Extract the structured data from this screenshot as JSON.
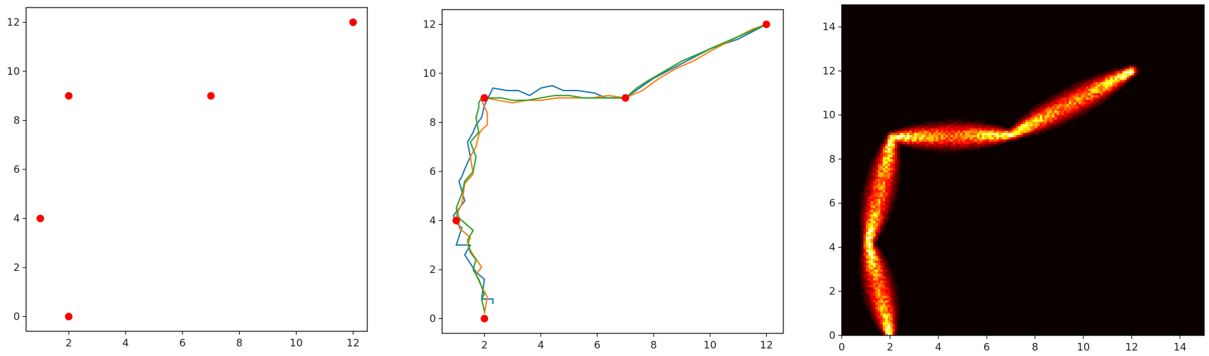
{
  "chart_data": [
    {
      "type": "scatter",
      "title": "",
      "xlabel": "",
      "ylabel": "",
      "xlim": [
        0.5,
        12.5
      ],
      "ylim": [
        -0.6,
        12.6
      ],
      "xticks": [
        2,
        4,
        6,
        8,
        10,
        12
      ],
      "yticks": [
        0,
        2,
        4,
        6,
        8,
        10,
        12
      ],
      "grid": false,
      "points": [
        {
          "x": 2,
          "y": 0
        },
        {
          "x": 1,
          "y": 4
        },
        {
          "x": 2,
          "y": 9
        },
        {
          "x": 7,
          "y": 9
        },
        {
          "x": 12,
          "y": 12
        }
      ],
      "point_color": "#ff0000"
    },
    {
      "type": "line",
      "title": "",
      "xlabel": "",
      "ylabel": "",
      "xlim": [
        0.5,
        12.6
      ],
      "ylim": [
        -0.6,
        12.6
      ],
      "xticks": [
        2,
        4,
        6,
        8,
        10,
        12
      ],
      "yticks": [
        0,
        2,
        4,
        6,
        8,
        10,
        12
      ],
      "grid": false,
      "waypoints": [
        {
          "x": 2,
          "y": 0
        },
        {
          "x": 1,
          "y": 4
        },
        {
          "x": 2,
          "y": 9
        },
        {
          "x": 7,
          "y": 9
        },
        {
          "x": 12,
          "y": 12
        }
      ],
      "waypoint_color": "#ff0000",
      "series": [
        {
          "color": "#1f77b4",
          "x": [
            2.3,
            2.3,
            1.9,
            2.0,
            1.8,
            1.7,
            1.3,
            1.5,
            1.0,
            1.2,
            1.0,
            0.9,
            1.3,
            1.1,
            1.2,
            1.3,
            1.5,
            1.4,
            1.6,
            1.7,
            1.9,
            2.0,
            2.3,
            2.8,
            3.2,
            3.6,
            4.0,
            4.4,
            4.8,
            5.3,
            5.9,
            6.3,
            6.7,
            7.0,
            7.5,
            8.0,
            8.5,
            9.0,
            9.5,
            10.0,
            10.5,
            11.0,
            11.5,
            12.0
          ],
          "y": [
            0.6,
            0.8,
            0.8,
            1.6,
            1.8,
            1.9,
            2.6,
            3.0,
            3.0,
            3.7,
            3.9,
            4.2,
            4.8,
            5.6,
            5.8,
            6.1,
            6.6,
            7.2,
            7.6,
            7.9,
            8.2,
            8.7,
            9.4,
            9.3,
            9.3,
            9.1,
            9.4,
            9.5,
            9.3,
            9.3,
            9.2,
            9.0,
            9.0,
            9.0,
            9.4,
            9.8,
            10.1,
            10.4,
            10.7,
            11.0,
            11.2,
            11.4,
            11.7,
            12.0
          ]
        },
        {
          "color": "#ff7f0e",
          "x": [
            2.0,
            2.1,
            1.9,
            1.7,
            1.9,
            1.6,
            1.4,
            1.5,
            1.1,
            1.1,
            1.0,
            1.2,
            1.3,
            1.6,
            1.5,
            1.7,
            1.8,
            1.9,
            2.1,
            2.1,
            1.9,
            2.0,
            2.5,
            3.0,
            3.5,
            4.0,
            4.6,
            5.2,
            5.8,
            6.4,
            7.0,
            7.6,
            8.2,
            8.8,
            9.4,
            10.0,
            10.5,
            11.0,
            11.5,
            12.0
          ],
          "y": [
            0.2,
            0.9,
            1.3,
            1.8,
            2.1,
            2.6,
            3.0,
            3.3,
            3.7,
            4.0,
            4.2,
            4.7,
            5.5,
            5.9,
            6.6,
            7.0,
            7.5,
            7.7,
            7.9,
            8.4,
            8.9,
            9.0,
            8.9,
            8.8,
            8.9,
            8.9,
            9.0,
            9.0,
            9.0,
            9.1,
            9.0,
            9.3,
            9.8,
            10.2,
            10.5,
            10.9,
            11.2,
            11.5,
            11.8,
            12.0
          ]
        },
        {
          "color": "#2ca02c",
          "x": [
            2.0,
            1.9,
            2.0,
            1.8,
            1.6,
            1.7,
            1.5,
            1.4,
            1.6,
            1.3,
            1.1,
            1.0,
            1.2,
            1.3,
            1.6,
            1.7,
            1.5,
            1.8,
            1.7,
            1.8,
            1.8,
            1.9,
            2.2,
            2.6,
            3.0,
            3.5,
            4.0,
            4.5,
            5.0,
            5.5,
            6.0,
            6.5,
            7.0,
            7.4,
            7.8,
            8.4,
            9.0,
            9.6,
            10.2,
            10.8,
            11.4,
            12.0
          ],
          "y": [
            0.3,
            0.8,
            1.0,
            1.6,
            2.0,
            2.4,
            2.7,
            3.2,
            3.6,
            3.9,
            4.1,
            4.5,
            5.1,
            5.6,
            6.0,
            6.6,
            7.2,
            7.6,
            8.2,
            8.6,
            8.8,
            9.0,
            9.0,
            9.0,
            8.9,
            8.9,
            9.0,
            9.1,
            9.1,
            9.0,
            9.0,
            9.0,
            9.0,
            9.4,
            9.7,
            10.1,
            10.5,
            10.8,
            11.1,
            11.4,
            11.7,
            12.0
          ]
        }
      ]
    },
    {
      "type": "heatmap",
      "title": "",
      "xlabel": "",
      "ylabel": "",
      "xlim": [
        0,
        15
      ],
      "ylim": [
        0,
        15
      ],
      "xticks": [
        0,
        2,
        4,
        6,
        8,
        10,
        12,
        14
      ],
      "yticks": [
        0,
        2,
        4,
        6,
        8,
        10,
        12,
        14
      ],
      "grid": false,
      "colormap": "hot",
      "bins": 150,
      "density_path": [
        {
          "x": 2.0,
          "y": 0.0
        },
        {
          "x": 1.1,
          "y": 4.2
        },
        {
          "x": 2.1,
          "y": 9.0
        },
        {
          "x": 7.0,
          "y": 9.1
        },
        {
          "x": 12.0,
          "y": 12.0
        }
      ]
    }
  ]
}
